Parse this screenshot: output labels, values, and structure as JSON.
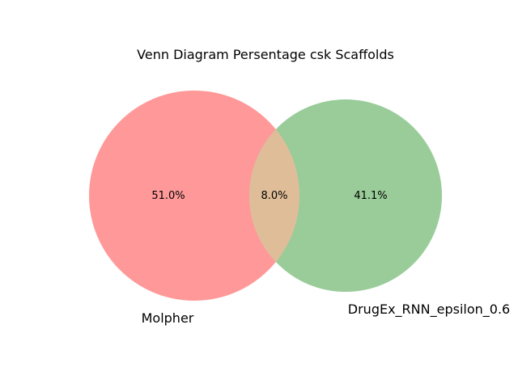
{
  "title": "Venn Diagram Persentage csk Scaffolds",
  "sets": [
    {
      "name": "Molpher",
      "color": "#ff9999"
    },
    {
      "name": "DrugEx_RNN_epsilon_0.6",
      "color": "#99cc99"
    }
  ],
  "overlap_color": "#e0bd99",
  "regions": {
    "left_only": "51.0%",
    "intersection": "8.0%",
    "right_only": "41.1%"
  },
  "chart_data": {
    "type": "venn",
    "title": "Venn Diagram Persentage csk Scaffolds",
    "sets": [
      "Molpher",
      "DrugEx_RNN_epsilon_0.6"
    ],
    "values": {
      "Molpher_only": 51.0,
      "both": 8.0,
      "DrugEx_RNN_epsilon_0.6_only": 41.1
    },
    "unit": "%"
  }
}
